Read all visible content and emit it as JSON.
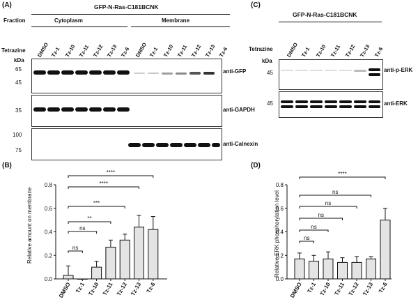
{
  "panels": {
    "a": "(A)",
    "b": "(B)",
    "c": "(C)",
    "d": "(D)"
  },
  "panel_a": {
    "construct": "GFP-N-Ras-C181BCNK",
    "fraction_label": "Fraction",
    "fractions": [
      "Cytoplasm",
      "Membrane"
    ],
    "tetrazine_label": "Tetrazine",
    "lanes": [
      "DMSO",
      "Tz-1",
      "Tz-10",
      "Tz-11",
      "Tz-12",
      "Tz-13",
      "Tz-6"
    ],
    "kda": "kDa",
    "blots": [
      {
        "label": "anti-GFP",
        "markers": [
          "65",
          "45"
        ]
      },
      {
        "label": "anti-GAPDH",
        "markers": [
          "35"
        ]
      },
      {
        "label": "anti-Calnexin",
        "markers": [
          "100",
          "75"
        ]
      }
    ]
  },
  "panel_c": {
    "construct": "GFP-N-Ras-C181BCNK",
    "tetrazine_label": "Tetrazine",
    "lanes": [
      "DMSO",
      "Tz-1",
      "Tz-10",
      "Tz-11",
      "Tz-12",
      "Tz-13",
      "Tz-6"
    ],
    "kda": "kDa",
    "blots": [
      {
        "label": "anti-p-ERK",
        "markers": [
          "45"
        ]
      },
      {
        "label": "anti-ERK",
        "markers": [
          "45"
        ]
      }
    ]
  },
  "chart_data": [
    {
      "type": "bar",
      "panel": "B",
      "categories": [
        "DMSO",
        "Tz-1",
        "Tz-10",
        "Tz-11",
        "Tz-12",
        "Tz-13",
        "Tz-6"
      ],
      "values": [
        0.03,
        0.0,
        0.1,
        0.27,
        0.33,
        0.44,
        0.42
      ],
      "errors": [
        0.08,
        0.0,
        0.05,
        0.06,
        0.05,
        0.1,
        0.11
      ],
      "ylabel": "Relative amount on membrane",
      "ylim": [
        0,
        0.8
      ],
      "yticks": [
        "0.0",
        "0.2",
        "0.4",
        "0.6",
        "0.8"
      ],
      "comparisons": [
        {
          "from": "DMSO",
          "to": "Tz-1",
          "label": "ns"
        },
        {
          "from": "DMSO",
          "to": "Tz-10",
          "label": "ns"
        },
        {
          "from": "DMSO",
          "to": "Tz-11",
          "label": "**"
        },
        {
          "from": "DMSO",
          "to": "Tz-12",
          "label": "***"
        },
        {
          "from": "DMSO",
          "to": "Tz-13",
          "label": "****"
        },
        {
          "from": "DMSO",
          "to": "Tz-6",
          "label": "****"
        }
      ]
    },
    {
      "type": "bar",
      "panel": "D",
      "categories": [
        "DMSO",
        "Tz-1",
        "Tz-10",
        "Tz-11",
        "Tz-12",
        "Tz-13",
        "Tz-6"
      ],
      "values": [
        0.17,
        0.15,
        0.17,
        0.14,
        0.14,
        0.17,
        0.5
      ],
      "errors": [
        0.05,
        0.05,
        0.06,
        0.04,
        0.05,
        0.02,
        0.1
      ],
      "ylabel": "Relative ERK phosphorylation level",
      "ylim": [
        0,
        0.8
      ],
      "yticks": [
        "0.0",
        "0.2",
        "0.4",
        "0.6",
        "0.8"
      ],
      "comparisons": [
        {
          "from": "DMSO",
          "to": "Tz-1",
          "label": "ns"
        },
        {
          "from": "DMSO",
          "to": "Tz-10",
          "label": "ns"
        },
        {
          "from": "DMSO",
          "to": "Tz-11",
          "label": "ns"
        },
        {
          "from": "DMSO",
          "to": "Tz-12",
          "label": "ns"
        },
        {
          "from": "DMSO",
          "to": "Tz-13",
          "label": "ns"
        },
        {
          "from": "DMSO",
          "to": "Tz-6",
          "label": "****"
        }
      ]
    }
  ]
}
